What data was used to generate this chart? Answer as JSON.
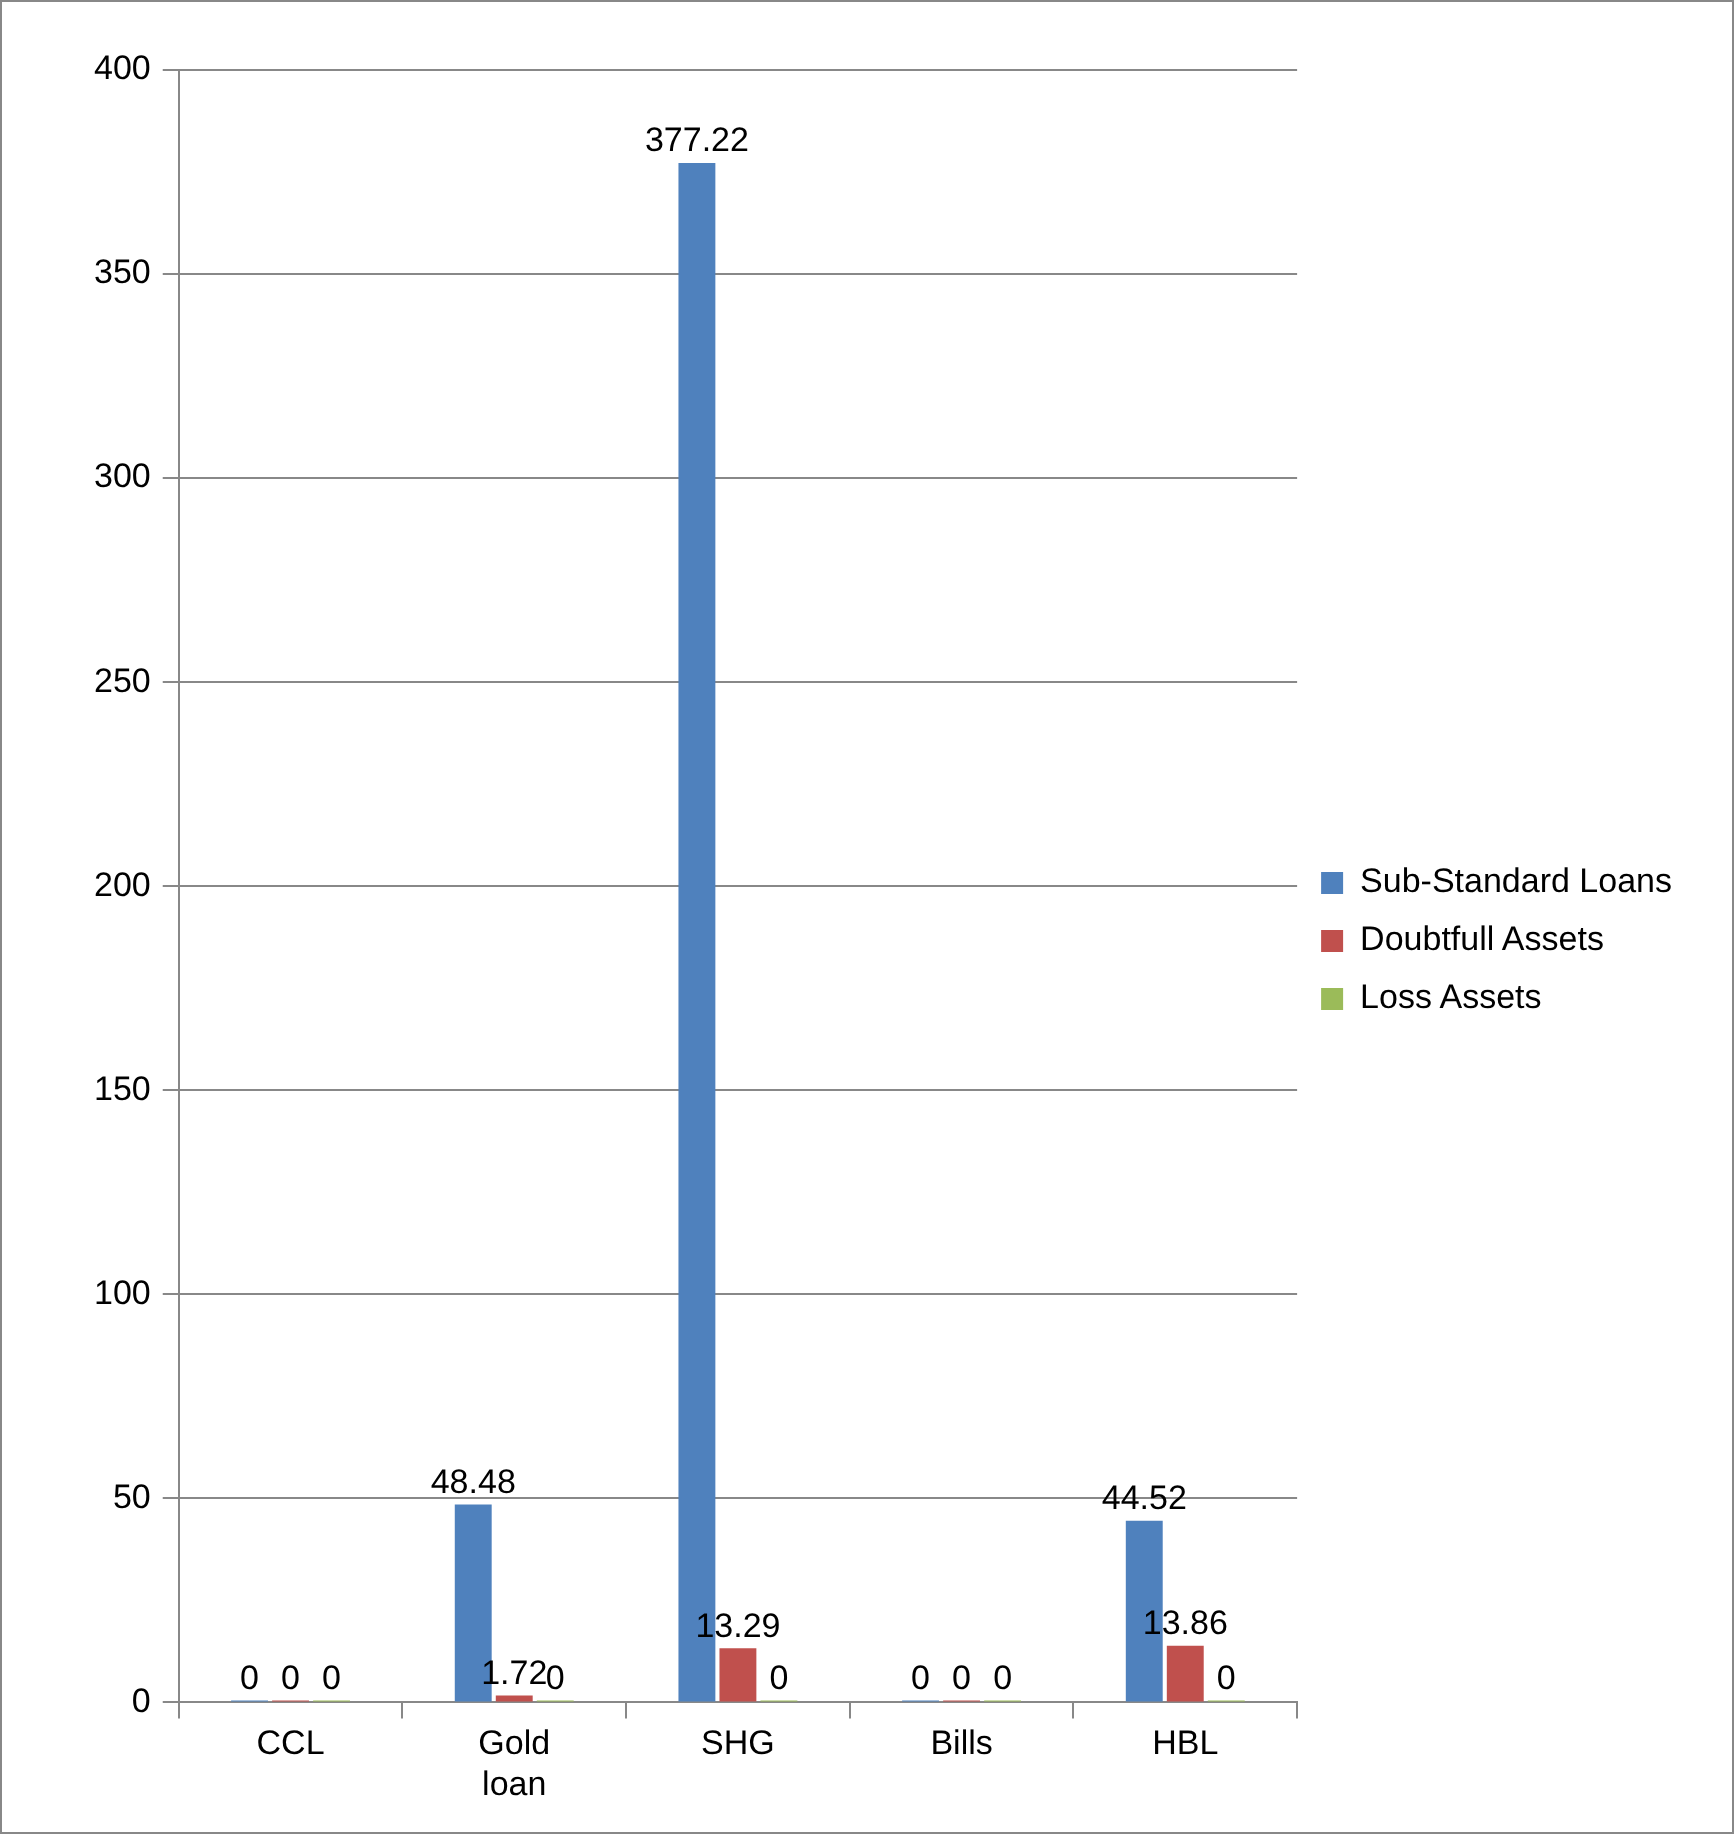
{
  "chart_data": {
    "type": "bar",
    "categories": [
      "CCL",
      "Gold loan",
      "SHG",
      "Bills",
      "HBL"
    ],
    "series": [
      {
        "name": "Sub-Standard Loans",
        "color": "#4f81bd",
        "values": [
          0,
          48.48,
          377.22,
          0,
          44.52
        ]
      },
      {
        "name": "Doubtfull Assets",
        "color": "#c0504d",
        "values": [
          0,
          1.72,
          13.29,
          0,
          13.86
        ]
      },
      {
        "name": "Loss Assets",
        "color": "#9bbb59",
        "values": [
          0,
          0,
          0,
          0,
          0
        ]
      }
    ],
    "ylim": [
      0,
      400
    ],
    "yticks": [
      0,
      50,
      100,
      150,
      200,
      250,
      300,
      350,
      400
    ],
    "grid": "y",
    "legend": "right",
    "data_labels": true
  }
}
